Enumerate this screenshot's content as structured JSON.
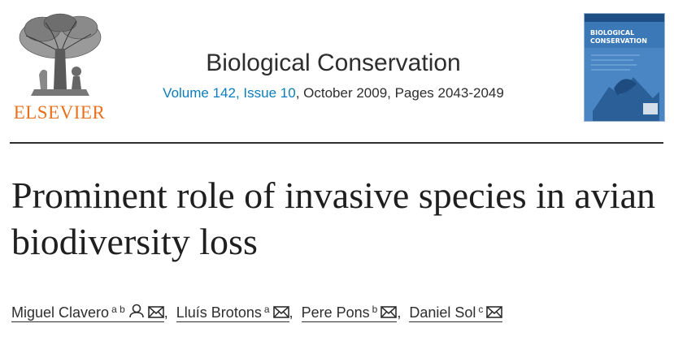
{
  "publisher": {
    "name": "ELSEVIER",
    "logo_icon": "tree-logo-icon",
    "brand_color": "#e9711c"
  },
  "journal": {
    "title": "Biological Conservation",
    "volume_issue": "Volume 142, Issue 10",
    "date_pages": ", October 2009, Pages 2043-2049",
    "cover_title": "BIOLOGICAL CONSERVATION",
    "link_color": "#0c7dbb"
  },
  "article": {
    "title": "Prominent role of invasive species in avian biodiversity loss"
  },
  "authors": [
    {
      "name": "Miguel Clavero",
      "affiliations": "a b",
      "icons": [
        "person-icon",
        "envelope-icon"
      ]
    },
    {
      "name": "Lluís Brotons",
      "affiliations": "a",
      "icons": [
        "envelope-icon"
      ]
    },
    {
      "name": "Pere Pons",
      "affiliations": "b",
      "icons": [
        "envelope-icon"
      ]
    },
    {
      "name": "Daniel Sol",
      "affiliations": "c",
      "icons": [
        "envelope-icon"
      ]
    }
  ],
  "separator": ","
}
